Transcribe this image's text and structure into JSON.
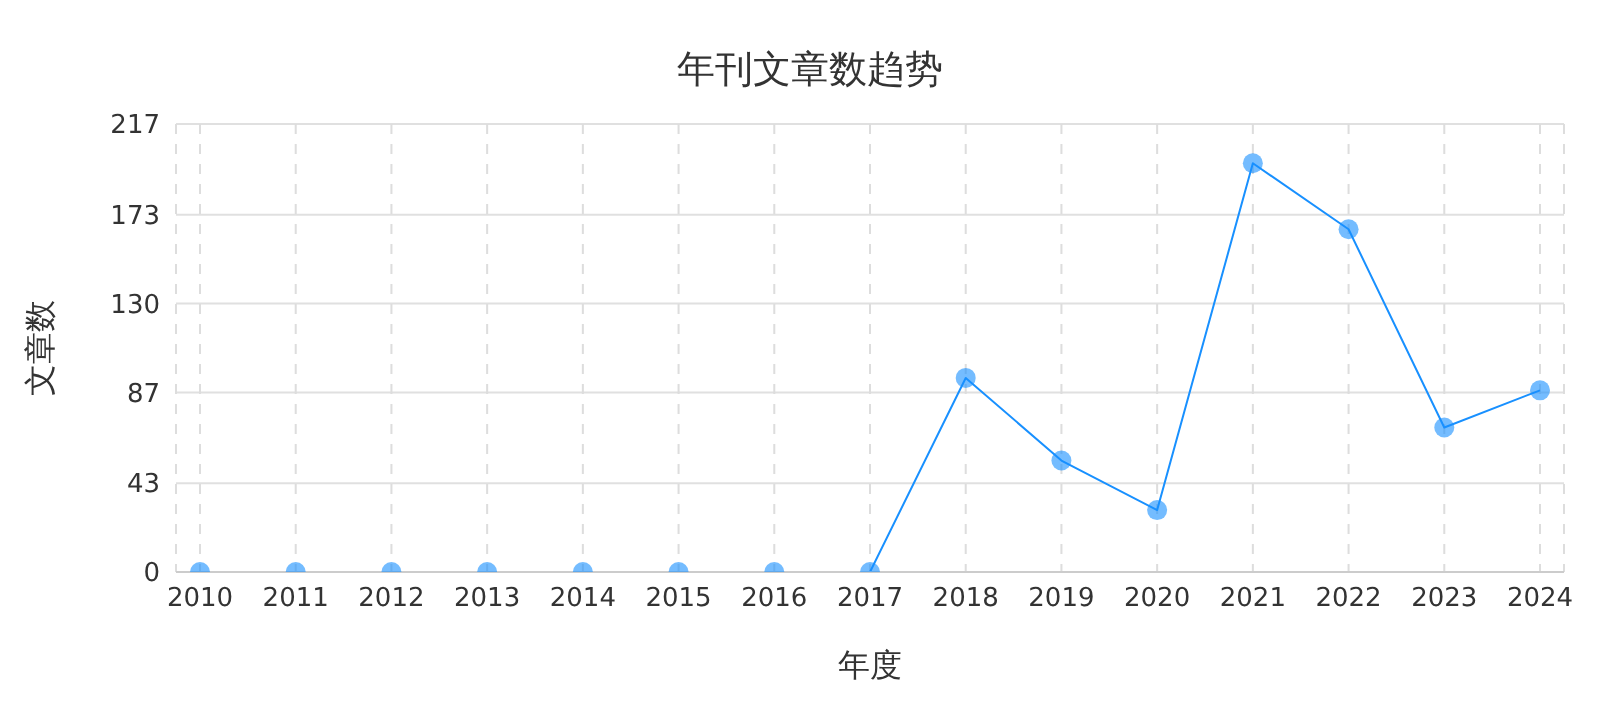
{
  "chart_data": {
    "type": "line",
    "title": "年刊文章数趋势",
    "xlabel": "年度",
    "ylabel": "文章数",
    "categories": [
      "2010",
      "2011",
      "2012",
      "2013",
      "2014",
      "2015",
      "2016",
      "2017",
      "2018",
      "2019",
      "2020",
      "2021",
      "2022",
      "2023",
      "2024"
    ],
    "series": [
      {
        "color": "#1890ff",
        "values": [
          0,
          0,
          0,
          0,
          0,
          0,
          0,
          0,
          94,
          54,
          30,
          198,
          166,
          70,
          88
        ]
      }
    ],
    "ylim": [
      0,
      217
    ],
    "yticks": [
      0,
      43,
      87,
      130,
      173,
      217
    ],
    "grid": true,
    "marker": "circle",
    "line_style": "solid"
  }
}
